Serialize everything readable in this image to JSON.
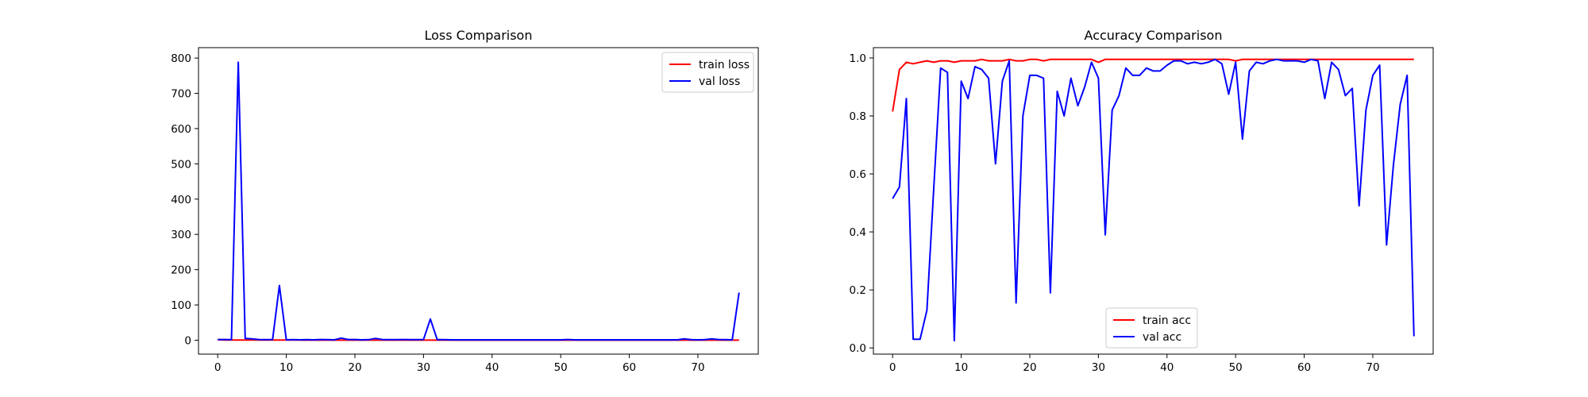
{
  "chart_data": [
    {
      "type": "line",
      "title": "Loss Comparison",
      "xlabel": "",
      "ylabel": "",
      "xlim": [
        -2.8,
        78.8
      ],
      "ylim": [
        -39.5,
        829.5
      ],
      "xticks": [
        0,
        10,
        20,
        30,
        40,
        50,
        60,
        70
      ],
      "yticks": [
        0,
        100,
        200,
        300,
        400,
        500,
        600,
        700,
        800
      ],
      "legend_position": "top-right",
      "series": [
        {
          "name": "train loss",
          "color": "#ff0000",
          "values": [
            1.2,
            0.5,
            0.4,
            0.3,
            0.35,
            0.3,
            0.3,
            0.25,
            0.3,
            0.25,
            0.25,
            0.3,
            0.25,
            0.2,
            0.2,
            0.2,
            0.25,
            0.2,
            0.2,
            0.2,
            0.2,
            0.2,
            0.2,
            0.2,
            0.2,
            0.2,
            0.2,
            0.2,
            0.2,
            0.2,
            0.2,
            0.2,
            0.2,
            0.2,
            0.2,
            0.2,
            0.2,
            0.2,
            0.2,
            0.2,
            0.2,
            0.2,
            0.2,
            0.2,
            0.2,
            0.2,
            0.2,
            0.2,
            0.2,
            0.2,
            0.2,
            0.2,
            0.2,
            0.2,
            0.2,
            0.2,
            0.2,
            0.2,
            0.2,
            0.2,
            0.2,
            0.2,
            0.2,
            0.2,
            0.2,
            0.2,
            0.2,
            0.2,
            0.2,
            0.2,
            0.2,
            0.2,
            0.2,
            0.2,
            0.2,
            0.2,
            0.2
          ]
        },
        {
          "name": "val loss",
          "color": "#0000ff",
          "values": [
            2,
            2,
            1.5,
            788,
            5,
            4,
            2,
            1.5,
            2,
            155,
            1,
            1.5,
            1,
            1.5,
            1,
            2,
            1.5,
            1,
            6,
            2,
            2,
            1,
            1.5,
            5,
            2,
            1.5,
            1.5,
            2,
            1.5,
            1.5,
            2,
            60,
            1.5,
            1.5,
            1,
            1,
            1,
            1,
            1,
            1,
            1,
            1,
            1,
            1,
            1,
            1,
            1,
            1,
            1,
            1,
            1,
            2,
            1,
            1,
            1,
            1,
            1,
            1,
            1,
            1,
            1,
            1,
            1,
            1,
            1,
            1,
            1,
            1,
            4,
            1.5,
            1,
            1.5,
            4,
            2,
            1.5,
            1,
            135
          ]
        }
      ]
    },
    {
      "type": "line",
      "title": "Accuracy Comparison",
      "xlabel": "",
      "ylabel": "",
      "xlim": [
        -2.8,
        78.8
      ],
      "ylim": [
        -0.0215,
        1.0355
      ],
      "xticks": [
        0,
        10,
        20,
        30,
        40,
        50,
        60,
        70
      ],
      "yticks": [
        "0.0",
        "0.2",
        "0.4",
        "0.6",
        "0.8",
        "1.0"
      ],
      "legend_position": "bottom-center",
      "series": [
        {
          "name": "train acc",
          "color": "#ff0000",
          "values": [
            0.815,
            0.96,
            0.985,
            0.98,
            0.985,
            0.99,
            0.985,
            0.99,
            0.99,
            0.985,
            0.99,
            0.99,
            0.99,
            0.995,
            0.99,
            0.99,
            0.99,
            0.995,
            0.99,
            0.99,
            0.995,
            0.995,
            0.99,
            0.995,
            0.995,
            0.995,
            0.995,
            0.995,
            0.995,
            0.995,
            0.985,
            0.995,
            0.995,
            0.995,
            0.995,
            0.995,
            0.995,
            0.995,
            0.995,
            0.995,
            0.995,
            0.995,
            0.995,
            0.995,
            0.995,
            0.995,
            0.995,
            0.995,
            0.995,
            0.995,
            0.99,
            0.995,
            0.995,
            0.995,
            0.995,
            0.995,
            0.995,
            0.995,
            0.995,
            0.995,
            0.995,
            0.995,
            0.995,
            0.995,
            0.995,
            0.995,
            0.995,
            0.995,
            0.995,
            0.995,
            0.995,
            0.995,
            0.995,
            0.995,
            0.995,
            0.995,
            0.995
          ]
        },
        {
          "name": "val acc",
          "color": "#0000ff",
          "values": [
            0.515,
            0.555,
            0.86,
            0.03,
            0.03,
            0.13,
            0.55,
            0.965,
            0.95,
            0.025,
            0.92,
            0.86,
            0.97,
            0.96,
            0.93,
            0.635,
            0.92,
            0.99,
            0.155,
            0.8,
            0.94,
            0.94,
            0.93,
            0.19,
            0.885,
            0.8,
            0.93,
            0.835,
            0.9,
            0.985,
            0.93,
            0.39,
            0.82,
            0.87,
            0.965,
            0.94,
            0.94,
            0.965,
            0.955,
            0.955,
            0.975,
            0.99,
            0.99,
            0.98,
            0.985,
            0.98,
            0.985,
            0.995,
            0.98,
            0.875,
            0.985,
            0.72,
            0.955,
            0.985,
            0.98,
            0.99,
            0.995,
            0.99,
            0.99,
            0.99,
            0.985,
            0.995,
            0.99,
            0.86,
            0.985,
            0.96,
            0.87,
            0.895,
            0.49,
            0.82,
            0.94,
            0.975,
            0.355,
            0.63,
            0.84,
            0.94,
            0.04
          ]
        }
      ]
    }
  ]
}
